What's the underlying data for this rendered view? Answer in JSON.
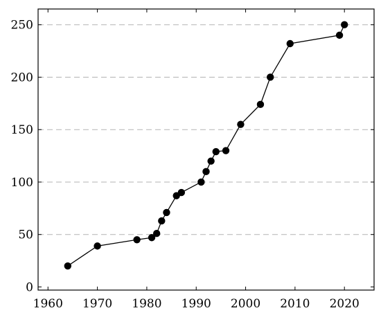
{
  "chart_data": {
    "type": "line",
    "title": "",
    "xlabel": "",
    "ylabel": "",
    "xlim": [
      1958,
      2026
    ],
    "ylim": [
      -3,
      265
    ],
    "x_ticks": [
      1960,
      1970,
      1980,
      1990,
      2000,
      2010,
      2020
    ],
    "x_tick_labels": [
      "1960",
      "1970",
      "1980",
      "1990",
      "2000",
      "2010",
      "2020"
    ],
    "y_ticks": [
      0,
      50,
      100,
      150,
      200,
      250
    ],
    "y_tick_labels": [
      "0",
      "50",
      "100",
      "150",
      "200",
      "250"
    ],
    "grid": "horizontal dashed",
    "series": [
      {
        "color": "#000000",
        "marker": "filled-circle",
        "x": [
          1964,
          1970,
          1978,
          1981,
          1982,
          1983,
          1984,
          1986,
          1987,
          1991,
          1992,
          1993,
          1994,
          1996,
          1999,
          2003,
          2005,
          2009,
          2019,
          2020
        ],
        "y": [
          20,
          39,
          45,
          47,
          51,
          63,
          71,
          87,
          90,
          100,
          110,
          120,
          129,
          130,
          155,
          174,
          200,
          232,
          240,
          250
        ]
      }
    ]
  }
}
